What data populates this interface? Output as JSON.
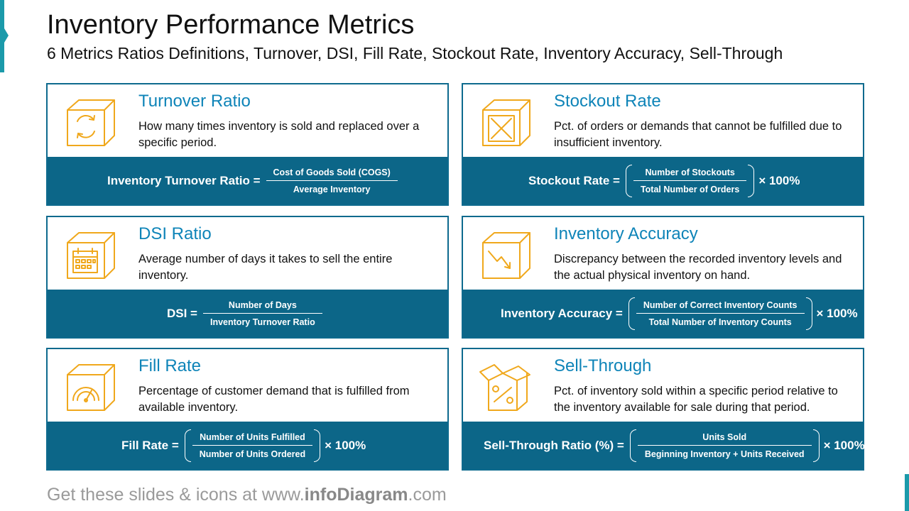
{
  "header": {
    "title": "Inventory Performance Metrics",
    "subtitle": "6 Metrics Ratios Definitions, Turnover, DSI, Fill Rate, Stockout Rate, Inventory Accuracy, Sell-Through"
  },
  "colors": {
    "accent": "#1b9aaa",
    "band": "#0c6688",
    "title_blue": "#0e84b8",
    "icon": "#f0a81c"
  },
  "cards": [
    {
      "icon": "rotating-box-icon",
      "title": "Turnover Ratio",
      "description": "How many times inventory is sold and replaced over a specific period.",
      "formula": {
        "lhs": "Inventory Turnover Ratio =",
        "numerator": "Cost of Goods Sold (COGS)",
        "denominator": "Average Inventory",
        "multiplier": ""
      }
    },
    {
      "icon": "crossed-box-icon",
      "title": "Stockout Rate",
      "description": "Pct. of orders or demands that cannot be fulfilled due to insufficient inventory.",
      "formula": {
        "lhs": "Stockout Rate =",
        "numerator": "Number of Stockouts",
        "denominator": "Total Number of Orders",
        "multiplier": "× 100%"
      }
    },
    {
      "icon": "calendar-box-icon",
      "title": "DSI Ratio",
      "description": "Average number of days it takes to sell the entire inventory.",
      "formula": {
        "lhs": "DSI =",
        "numerator": "Number of Days",
        "denominator": "Inventory Turnover Ratio",
        "multiplier": ""
      }
    },
    {
      "icon": "decline-box-icon",
      "title": "Inventory Accuracy",
      "description": "Discrepancy between the recorded inventory levels and the actual physical inventory on hand.",
      "formula": {
        "lhs": "Inventory Accuracy =",
        "numerator": "Number of Correct Inventory Counts",
        "denominator": "Total Number of Inventory Counts",
        "multiplier": "× 100%"
      }
    },
    {
      "icon": "gauge-box-icon",
      "title": "Fill Rate",
      "description": "Percentage of customer demand that is fulfilled from available inventory.",
      "formula": {
        "lhs": "Fill Rate =",
        "numerator": "Number of Units Fulfilled",
        "denominator": "Number of Units Ordered",
        "multiplier": "× 100%"
      }
    },
    {
      "icon": "percent-open-box-icon",
      "title": "Sell-Through",
      "description": "Pct. of inventory sold within a specific period relative to the inventory available for sale during that period.",
      "formula": {
        "lhs": "Sell-Through Ratio (%) =",
        "numerator": "Units Sold",
        "denominator": "Beginning Inventory + Units Received",
        "multiplier": "× 100%"
      }
    }
  ],
  "footer": {
    "prefix": "Get these slides & icons at www.",
    "brand": "infoDiagram",
    "suffix": ".com"
  }
}
